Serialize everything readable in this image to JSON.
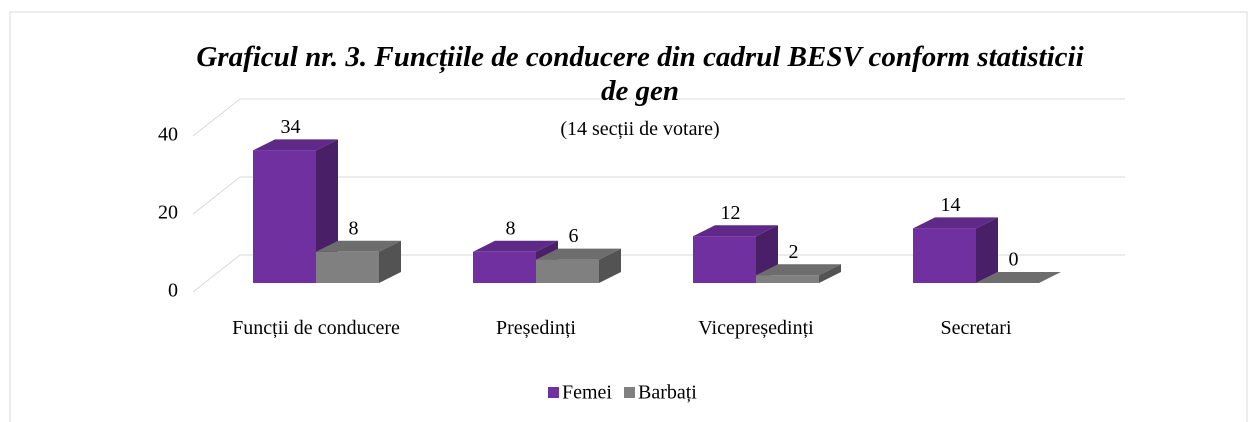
{
  "chart_data": {
    "type": "bar3d",
    "title": "Graficul nr. 3. Funcțiile de conducere din cadrul BESV conform statisticii de gen",
    "subtitle": "(14 secții de votare)",
    "categories": [
      "Funcții de conducere",
      "Președinți",
      "Vicepreședinți",
      "Secretari"
    ],
    "series": [
      {
        "name": "Femei",
        "color": "#7030a0",
        "values": [
          34,
          8,
          12,
          14
        ]
      },
      {
        "name": "Barbați",
        "color": "#808080",
        "values": [
          8,
          6,
          2,
          0
        ]
      }
    ],
    "ylim": [
      0,
      40
    ],
    "yticks": [
      0,
      20,
      40
    ],
    "grid": true,
    "legend": "bottom"
  }
}
